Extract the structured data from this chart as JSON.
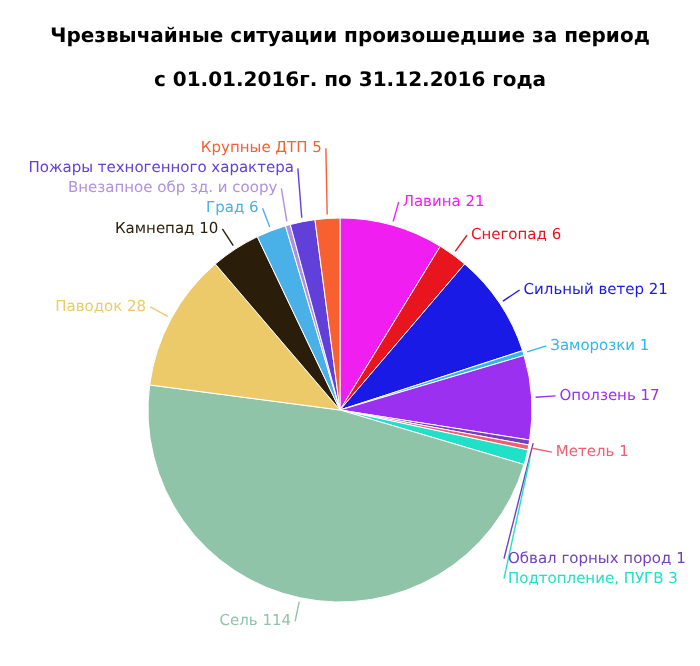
{
  "chart_data": {
    "type": "pie",
    "title": "Чрезвычайные ситуации произошедшие за период",
    "subtitle": "с 01.01.2016г. по 31.12.2016 года",
    "categories": [
      "Лавина 21",
      "Снегопад 6",
      "Сильный ветер 21",
      "Заморозки 1",
      "Оползень 17",
      "Обвал горных пород 1",
      "Метель 1",
      "Подтопление, ПУГВ 3",
      "Сель 114",
      "Паводок 28",
      "Камнепад 10",
      "Град 6",
      "Внезапное обр зд. и соору",
      "Пожары техногенного характера",
      "Крупные ДТП 5"
    ],
    "values": [
      21,
      6,
      21,
      1,
      17,
      1,
      1,
      3,
      114,
      28,
      10,
      6,
      1,
      5,
      5
    ],
    "colors": [
      "#f01ef0",
      "#e8141e",
      "#1a1ae6",
      "#30b8e8",
      "#9b30f0",
      "#7040c0",
      "#f06070",
      "#20e0c8",
      "#8fc4a8",
      "#ecca6a",
      "#2a1e0a",
      "#4ab0e8",
      "#b090e0",
      "#6040d8",
      "#f86030"
    ]
  }
}
